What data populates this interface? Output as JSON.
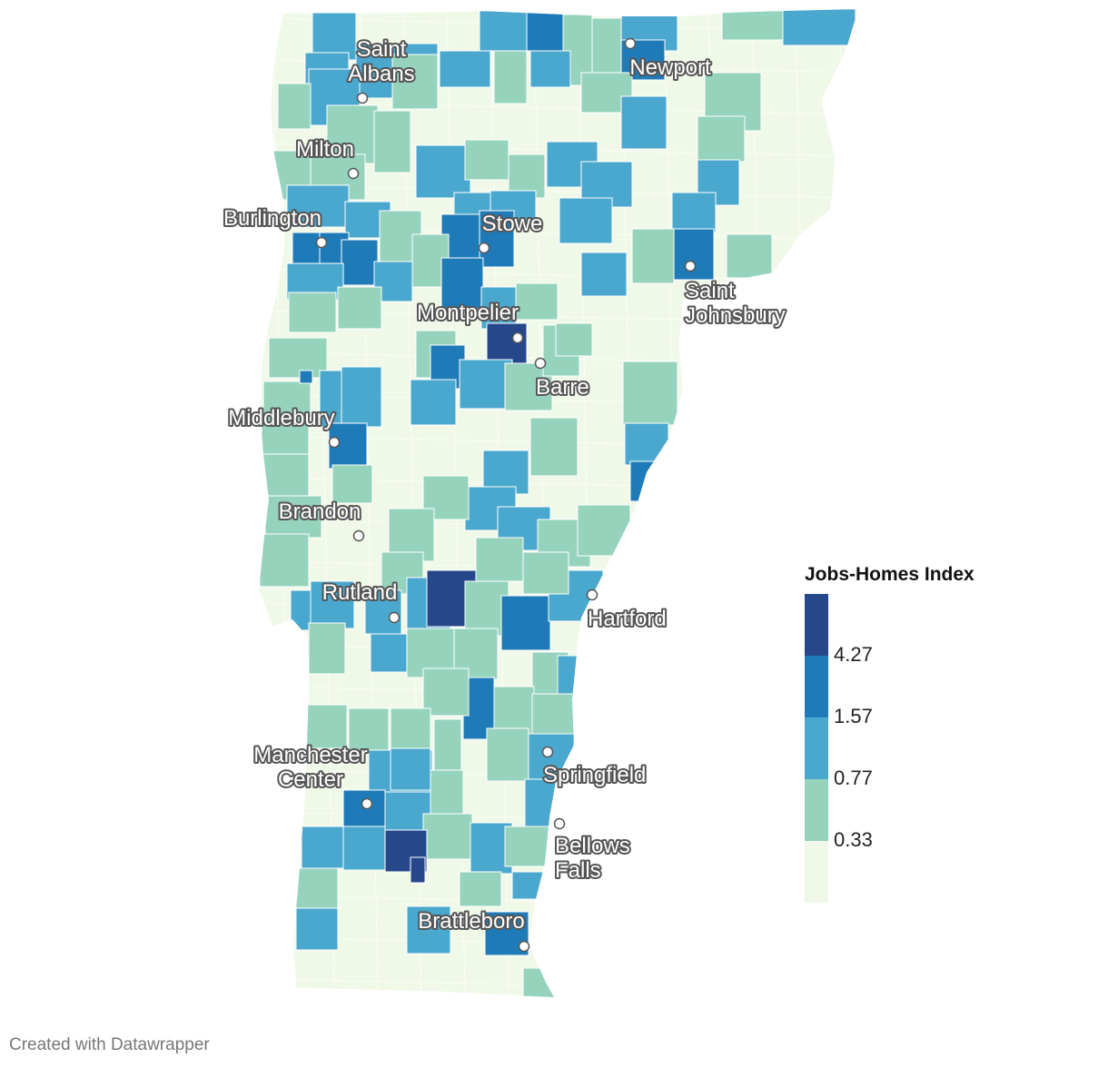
{
  "legend": {
    "title": "Jobs-Homes Index",
    "ticks": [
      "4.27",
      "1.57",
      "0.77",
      "0.33"
    ],
    "colors": [
      "#26488b",
      "#1f7bb7",
      "#4aa7ce",
      "#96d3bd",
      "#f0f9e8"
    ]
  },
  "cities": [
    {
      "id": "saint-albans",
      "lines": [
        "Saint",
        "Albans"
      ]
    },
    {
      "id": "milton",
      "lines": [
        "Milton"
      ]
    },
    {
      "id": "burlington",
      "lines": [
        "Burlington"
      ]
    },
    {
      "id": "stowe",
      "lines": [
        "Stowe"
      ]
    },
    {
      "id": "newport",
      "lines": [
        "Newport"
      ]
    },
    {
      "id": "saint-johnsbury",
      "lines": [
        "Saint",
        "Johnsbury"
      ]
    },
    {
      "id": "montpelier",
      "lines": [
        "Montpelier"
      ]
    },
    {
      "id": "barre",
      "lines": [
        "Barre"
      ]
    },
    {
      "id": "middlebury",
      "lines": [
        "Middlebury"
      ]
    },
    {
      "id": "brandon",
      "lines": [
        "Brandon"
      ]
    },
    {
      "id": "rutland",
      "lines": [
        "Rutland"
      ]
    },
    {
      "id": "hartford",
      "lines": [
        "Hartford"
      ]
    },
    {
      "id": "manchester-center",
      "lines": [
        "Manchester",
        "Center"
      ]
    },
    {
      "id": "springfield",
      "lines": [
        "Springfield"
      ]
    },
    {
      "id": "bellows-falls",
      "lines": [
        "Bellows",
        "Falls"
      ]
    },
    {
      "id": "brattleboro",
      "lines": [
        "Brattleboro"
      ]
    }
  ],
  "credit": "Created with Datawrapper"
}
